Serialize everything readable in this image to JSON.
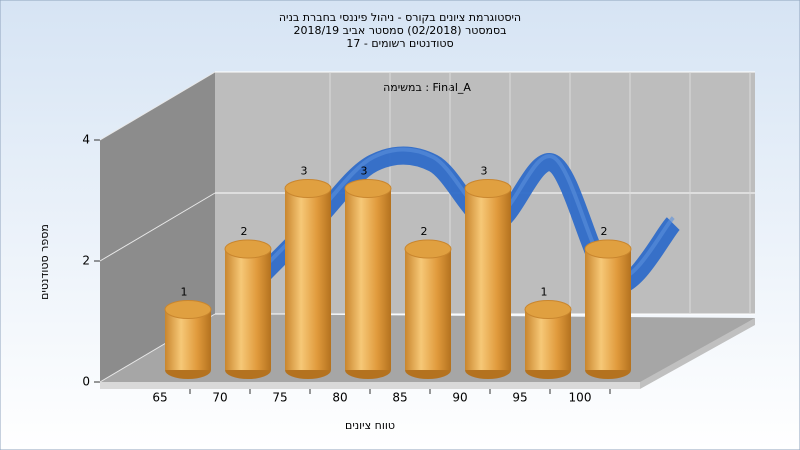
{
  "chart_data": {
    "type": "bar",
    "title": [
      "היסטוגרמת ציונים בקורס - ניהול פיננסי בחברת בניה",
      "בסמסטר (02/2018) סמסטר אביב 2018/19",
      "סטודנטים רשומים - 17"
    ],
    "annotation": "במשימה : Final_A",
    "x_label": "טווח ציונים",
    "y_label": "מספר סטודנטים",
    "categories": [
      "65",
      "70",
      "75",
      "80",
      "85",
      "90",
      "95",
      "100"
    ],
    "values": [
      1,
      2,
      3,
      3,
      2,
      3,
      1,
      2
    ],
    "color": "#e0a040",
    "line_color": "#2f6cc8",
    "ylim": [
      0,
      4
    ],
    "yticks": [
      0,
      2,
      4
    ],
    "grid": true
  }
}
